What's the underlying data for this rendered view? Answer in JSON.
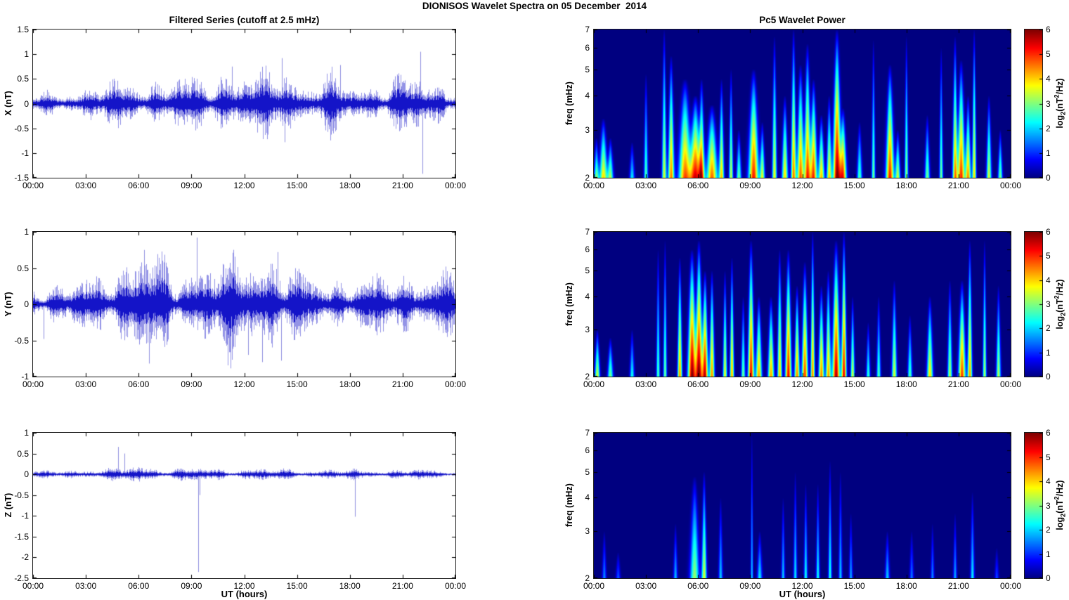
{
  "figure_title": "DIONISOS Wavelet Spectra on 05 December  2014",
  "left_column_title": "Filtered Series (cutoff at 2.5 mHz)",
  "right_column_title": "Pc5 Wavelet Power",
  "x_axis": {
    "label": "UT (hours)",
    "tick_labels": [
      "00:00",
      "03:00",
      "06:00",
      "09:00",
      "12:00",
      "15:00",
      "18:00",
      "21:00",
      "00:00"
    ],
    "tick_hours": [
      0,
      3,
      6,
      9,
      12,
      15,
      18,
      21,
      24
    ]
  },
  "colorbar": {
    "min": 0,
    "max": 6,
    "ticks": [
      0,
      1,
      2,
      3,
      4,
      5,
      6
    ],
    "colormap": "jet",
    "label_parts": {
      "prefix": "log",
      "sub": "2",
      "mid": "(nT",
      "sup": "2",
      "suffix": "/Hz)"
    }
  },
  "line_color": "#1414c8",
  "chart_data": [
    {
      "type": "line",
      "name": "X filtered series",
      "ylabel": "X (nT)",
      "xlim_hours": [
        0,
        24
      ],
      "ylim": [
        -1.5,
        1.5
      ],
      "yticks": [
        1.5,
        1,
        0.5,
        0,
        -0.5,
        -1,
        -1.5
      ],
      "envelope_hourly": [
        0.18,
        0.22,
        0.26,
        0.3,
        0.38,
        0.45,
        0.48,
        0.45,
        0.48,
        0.52,
        0.55,
        0.68,
        0.58,
        0.55,
        0.85,
        0.5,
        0.38,
        0.55,
        0.34,
        0.4,
        0.45,
        0.5,
        0.55,
        0.42,
        0.4
      ],
      "spikes": [
        [
          0.8,
          0.28
        ],
        [
          11.3,
          0.75
        ],
        [
          14.15,
          0.92
        ],
        [
          14.3,
          -0.78
        ],
        [
          17.45,
          0.78
        ],
        [
          22.0,
          1.05
        ],
        [
          22.12,
          -1.42
        ]
      ]
    },
    {
      "type": "line",
      "name": "Y filtered series",
      "ylabel": "Y (nT)",
      "xlim_hours": [
        0,
        24
      ],
      "ylim": [
        -1,
        1
      ],
      "yticks": [
        1,
        0.5,
        0,
        -0.5,
        -1
      ],
      "envelope_hourly": [
        0.32,
        0.27,
        0.27,
        0.35,
        0.45,
        0.6,
        0.75,
        0.65,
        0.42,
        0.6,
        0.58,
        0.65,
        0.62,
        0.72,
        0.68,
        0.42,
        0.32,
        0.36,
        0.38,
        0.36,
        0.4,
        0.44,
        0.46,
        0.42,
        0.38
      ],
      "spikes": [
        [
          0.6,
          -0.48
        ],
        [
          6.3,
          0.75
        ],
        [
          6.6,
          -0.82
        ],
        [
          9.3,
          0.92
        ],
        [
          12.2,
          -0.7
        ],
        [
          13.0,
          -0.8
        ],
        [
          13.9,
          0.72
        ],
        [
          14.1,
          -0.78
        ]
      ]
    },
    {
      "type": "line",
      "name": "Z filtered series",
      "ylabel": "Z (nT)",
      "xlim_hours": [
        0,
        24
      ],
      "ylim": [
        -2.5,
        1
      ],
      "yticks": [
        1,
        0.5,
        0,
        -0.5,
        -1,
        -1.5,
        -2,
        -2.5
      ],
      "envelope_hourly": [
        0.08,
        0.08,
        0.09,
        0.12,
        0.14,
        0.14,
        0.2,
        0.16,
        0.12,
        0.16,
        0.13,
        0.13,
        0.14,
        0.13,
        0.13,
        0.11,
        0.11,
        0.11,
        0.11,
        0.1,
        0.1,
        0.12,
        0.11,
        0.09,
        0.09
      ],
      "spikes": [
        [
          4.85,
          0.66
        ],
        [
          5.2,
          0.5
        ],
        [
          9.4,
          -2.35
        ],
        [
          9.45,
          -0.5
        ],
        [
          18.3,
          -1.02
        ]
      ]
    },
    {
      "type": "heatmap",
      "name": "X Pc5 wavelet power",
      "ylabel": "freq (mHz)",
      "yscale": "log",
      "xlim_hours": [
        0,
        24
      ],
      "ylim_mhz": [
        2,
        7
      ],
      "yticks": [
        7,
        6,
        5,
        4,
        3,
        2
      ],
      "clim": [
        0,
        6
      ],
      "colormap": "jet",
      "plumes_t_ftop_amp_w": [
        [
          0.15,
          2.8,
          3.0,
          0.1
        ],
        [
          0.55,
          3.3,
          4.0,
          0.16
        ],
        [
          0.95,
          2.8,
          3.2,
          0.12
        ],
        [
          2.2,
          2.7,
          2.2,
          0.1
        ],
        [
          3.0,
          4.8,
          2.8,
          0.08
        ],
        [
          4.05,
          7.0,
          3.6,
          0.09
        ],
        [
          4.45,
          5.6,
          4.6,
          0.12
        ],
        [
          5.25,
          4.6,
          4.8,
          0.25
        ],
        [
          5.85,
          4.0,
          5.3,
          0.22
        ],
        [
          6.2,
          4.6,
          4.6,
          0.12
        ],
        [
          6.8,
          3.7,
          4.7,
          0.22
        ],
        [
          7.35,
          4.6,
          4.0,
          0.1
        ],
        [
          7.9,
          5.0,
          3.5,
          0.08
        ],
        [
          8.35,
          3.0,
          3.0,
          0.1
        ],
        [
          9.2,
          5.0,
          5.2,
          0.2
        ],
        [
          9.7,
          3.2,
          3.5,
          0.1
        ],
        [
          10.4,
          6.6,
          3.8,
          0.09
        ],
        [
          11.0,
          4.0,
          4.0,
          0.12
        ],
        [
          11.5,
          7.0,
          4.6,
          0.1
        ],
        [
          11.9,
          5.2,
          4.8,
          0.14
        ],
        [
          12.3,
          6.2,
          5.0,
          0.13
        ],
        [
          12.65,
          4.6,
          5.0,
          0.14
        ],
        [
          13.1,
          3.4,
          4.2,
          0.12
        ],
        [
          13.55,
          4.0,
          4.0,
          0.1
        ],
        [
          14.0,
          7.0,
          6.0,
          0.16
        ],
        [
          14.35,
          3.6,
          4.8,
          0.14
        ],
        [
          15.3,
          3.2,
          2.8,
          0.1
        ],
        [
          16.1,
          6.4,
          3.0,
          0.07
        ],
        [
          17.05,
          5.2,
          5.2,
          0.16
        ],
        [
          17.5,
          3.0,
          3.5,
          0.1
        ],
        [
          18.0,
          6.6,
          3.2,
          0.07
        ],
        [
          19.2,
          3.4,
          3.0,
          0.1
        ],
        [
          20.0,
          6.0,
          3.0,
          0.07
        ],
        [
          20.8,
          6.6,
          4.4,
          0.1
        ],
        [
          21.15,
          5.4,
          5.1,
          0.15
        ],
        [
          21.55,
          4.0,
          4.4,
          0.11
        ],
        [
          21.9,
          7.0,
          4.0,
          0.08
        ],
        [
          22.75,
          4.0,
          3.6,
          0.1
        ],
        [
          23.4,
          3.0,
          3.0,
          0.09
        ]
      ]
    },
    {
      "type": "heatmap",
      "name": "Y Pc5 wavelet power",
      "ylabel": "freq (mHz)",
      "yscale": "log",
      "xlim_hours": [
        0,
        24
      ],
      "ylim_mhz": [
        2,
        7
      ],
      "yticks": [
        7,
        6,
        5,
        4,
        3,
        2
      ],
      "clim": [
        0,
        6
      ],
      "colormap": "jet",
      "plumes_t_ftop_amp_w": [
        [
          0.2,
          3.0,
          3.6,
          0.1
        ],
        [
          0.95,
          2.8,
          3.0,
          0.11
        ],
        [
          2.2,
          3.0,
          2.4,
          0.09
        ],
        [
          3.7,
          6.0,
          2.8,
          0.07
        ],
        [
          4.1,
          6.5,
          3.0,
          0.07
        ],
        [
          4.95,
          5.6,
          4.5,
          0.09
        ],
        [
          5.65,
          6.0,
          6.0,
          0.16
        ],
        [
          6.05,
          6.5,
          6.0,
          0.14
        ],
        [
          6.4,
          5.0,
          5.5,
          0.12
        ],
        [
          6.8,
          5.0,
          4.5,
          0.1
        ],
        [
          7.55,
          5.0,
          3.8,
          0.08
        ],
        [
          7.95,
          5.6,
          4.4,
          0.08
        ],
        [
          8.6,
          4.0,
          3.0,
          0.08
        ],
        [
          9.05,
          6.5,
          5.4,
          0.12
        ],
        [
          9.5,
          4.0,
          4.4,
          0.12
        ],
        [
          10.2,
          4.0,
          4.4,
          0.12
        ],
        [
          10.7,
          6.0,
          4.2,
          0.09
        ],
        [
          11.2,
          6.0,
          5.4,
          0.12
        ],
        [
          11.7,
          4.4,
          4.6,
          0.1
        ],
        [
          12.15,
          5.4,
          5.0,
          0.12
        ],
        [
          12.6,
          7.0,
          4.6,
          0.08
        ],
        [
          13.1,
          4.4,
          4.6,
          0.11
        ],
        [
          13.5,
          5.0,
          4.4,
          0.1
        ],
        [
          13.95,
          6.5,
          5.8,
          0.15
        ],
        [
          14.4,
          7.0,
          5.4,
          0.1
        ],
        [
          14.9,
          4.0,
          3.6,
          0.08
        ],
        [
          15.8,
          3.2,
          2.6,
          0.08
        ],
        [
          16.4,
          4.0,
          2.8,
          0.08
        ],
        [
          17.3,
          4.6,
          3.6,
          0.1
        ],
        [
          18.2,
          3.4,
          2.8,
          0.09
        ],
        [
          19.35,
          4.0,
          4.0,
          0.12
        ],
        [
          20.5,
          4.6,
          3.4,
          0.09
        ],
        [
          21.2,
          4.6,
          5.0,
          0.14
        ],
        [
          21.65,
          6.5,
          4.4,
          0.09
        ],
        [
          22.5,
          6.5,
          3.4,
          0.07
        ],
        [
          23.3,
          4.4,
          3.4,
          0.09
        ]
      ]
    },
    {
      "type": "heatmap",
      "name": "Z Pc5 wavelet power",
      "ylabel": "freq (mHz)",
      "yscale": "log",
      "xlim_hours": [
        0,
        24
      ],
      "ylim_mhz": [
        2,
        7
      ],
      "yticks": [
        7,
        6,
        5,
        4,
        3,
        2
      ],
      "clim": [
        0,
        6
      ],
      "colormap": "jet",
      "plumes_t_ftop_amp_w": [
        [
          0.6,
          3.0,
          1.6,
          0.08
        ],
        [
          1.4,
          2.5,
          1.3,
          0.09
        ],
        [
          4.7,
          3.2,
          1.9,
          0.08
        ],
        [
          5.8,
          4.8,
          3.2,
          0.18
        ],
        [
          6.35,
          5.0,
          3.6,
          0.1
        ],
        [
          7.3,
          4.0,
          2.0,
          0.08
        ],
        [
          9.1,
          7.0,
          2.0,
          0.05
        ],
        [
          9.55,
          3.0,
          2.2,
          0.1
        ],
        [
          10.9,
          4.0,
          2.0,
          0.07
        ],
        [
          11.6,
          5.0,
          2.2,
          0.07
        ],
        [
          12.2,
          4.5,
          2.4,
          0.07
        ],
        [
          12.9,
          4.5,
          2.4,
          0.07
        ],
        [
          13.6,
          5.5,
          2.5,
          0.07
        ],
        [
          14.2,
          5.0,
          2.0,
          0.07
        ],
        [
          14.8,
          3.5,
          1.8,
          0.07
        ],
        [
          16.9,
          3.0,
          2.0,
          0.09
        ],
        [
          18.3,
          3.0,
          1.5,
          0.08
        ],
        [
          19.5,
          3.2,
          1.6,
          0.07
        ],
        [
          20.8,
          3.5,
          1.8,
          0.07
        ],
        [
          21.8,
          4.2,
          2.2,
          0.08
        ],
        [
          23.2,
          2.6,
          1.2,
          0.08
        ]
      ]
    }
  ]
}
